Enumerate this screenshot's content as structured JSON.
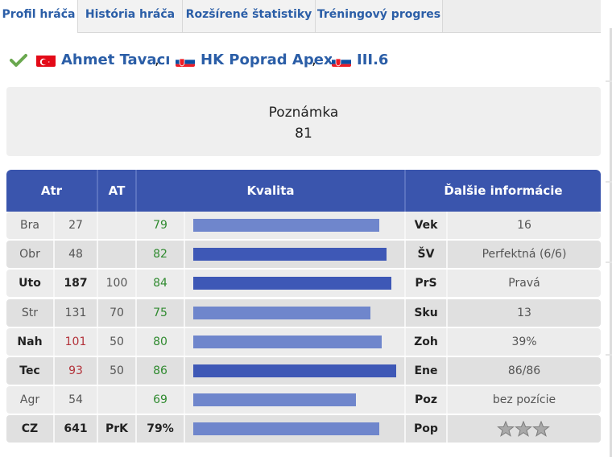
{
  "tabs": [
    {
      "label": "Profil hráča",
      "active": true
    },
    {
      "label": "História hráča",
      "active": false
    },
    {
      "label": "Rozšírené štatistiky",
      "active": false
    },
    {
      "label": "Tréningový progres",
      "active": false
    }
  ],
  "player": {
    "name": "Ahmet Tavacı",
    "team": "HK Poprad Apex",
    "league": "III.6",
    "separator": ","
  },
  "note": {
    "label": "Poznámka",
    "value": "81"
  },
  "table": {
    "headers": {
      "atr": "Atr",
      "at": "AT",
      "kvalita": "Kvalita",
      "info": "Ďalšie informácie"
    },
    "rows": [
      {
        "attr": "Bra",
        "value": "27",
        "at": "",
        "quality": "79",
        "quality_fraction": 0.79,
        "info_label": "Vek",
        "info_value": "16"
      },
      {
        "attr": "Obr",
        "value": "48",
        "at": "",
        "quality": "82",
        "quality_fraction": 0.82,
        "info_label": "ŠV",
        "info_value": "Perfektná (6/6)"
      },
      {
        "attr": "Uto",
        "value": "187",
        "at": "100",
        "quality": "84",
        "quality_fraction": 0.84,
        "info_label": "PrS",
        "info_value": "Pravá"
      },
      {
        "attr": "Str",
        "value": "131",
        "at": "70",
        "quality": "75",
        "quality_fraction": 0.75,
        "info_label": "Sku",
        "info_value": "13"
      },
      {
        "attr": "Nah",
        "value": "101",
        "at": "50",
        "quality": "80",
        "quality_fraction": 0.8,
        "info_label": "Zoh",
        "info_value": "39%"
      },
      {
        "attr": "Tec",
        "value": "93",
        "at": "50",
        "quality": "86",
        "quality_fraction": 0.86,
        "info_label": "Ene",
        "info_value": "86/86"
      },
      {
        "attr": "Agr",
        "value": "54",
        "at": "",
        "quality": "69",
        "quality_fraction": 0.69,
        "info_label": "Poz",
        "info_value": "bez pozície"
      },
      {
        "attr": "CZ",
        "value": "641",
        "at": "PrK",
        "quality": "79%",
        "quality_fraction": 0.79,
        "info_label": "Pop",
        "info_value": ""
      }
    ],
    "popularity_stars": 3
  },
  "colors": {
    "accent": "#2b5ea7",
    "header_bg": "#3a55ad",
    "bar_light": "#6f86cc",
    "bar_dark": "#3e58b6",
    "quality_green": "#2f8a2f",
    "value_red": "#b3323a"
  },
  "icons": {
    "check": "check-icon",
    "flag_player": "turkey-flag-icon",
    "flag_team": "slovakia-flag-icon",
    "flag_league": "slovakia-flag-icon",
    "star": "star-icon"
  }
}
